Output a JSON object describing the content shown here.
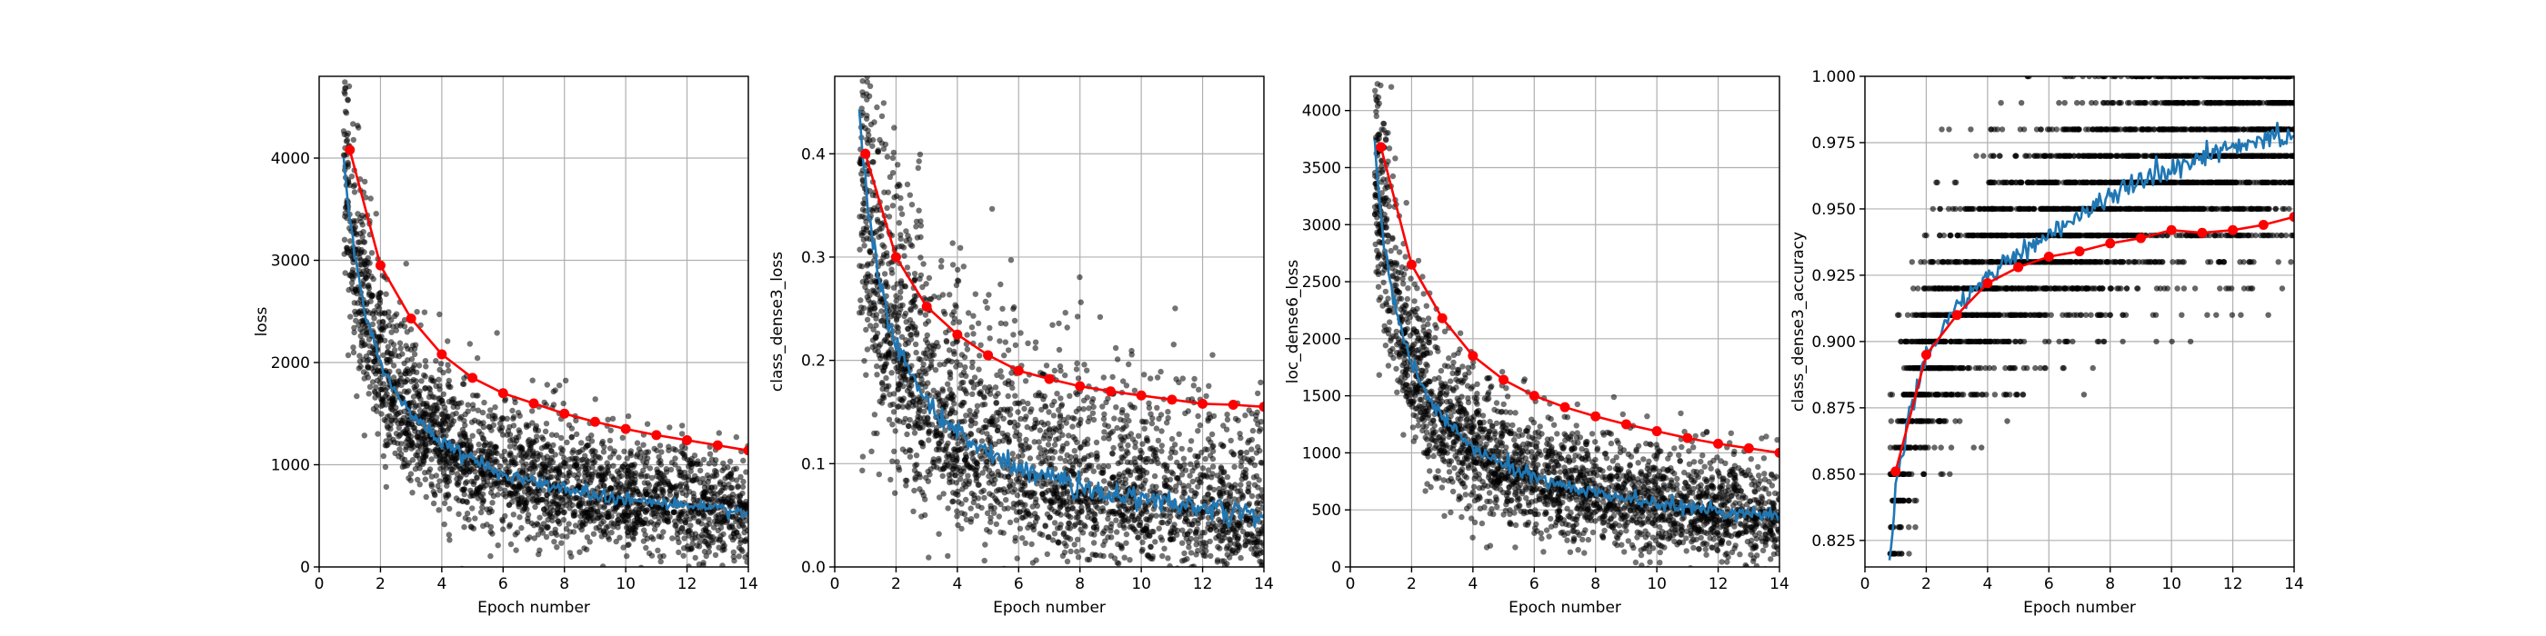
{
  "colors": {
    "scatter": "#000000",
    "train_curve": "#1f77b4",
    "val_curve": "#ff0000",
    "grid": "#b0b0b0"
  },
  "chart_data": [
    {
      "type": "line",
      "xlabel": "Epoch number",
      "ylabel": "loss",
      "xlim": [
        0,
        14
      ],
      "ylim": [
        0,
        4800
      ],
      "xticks": [
        0,
        2,
        4,
        6,
        8,
        10,
        12,
        14
      ],
      "yticks": [
        0,
        1000,
        2000,
        3000,
        4000
      ],
      "ytick_labels": [
        "0",
        "1000",
        "2000",
        "3000",
        "4000"
      ],
      "grid": true,
      "series": [
        {
          "kind": "batch_scatter",
          "model": {
            "a": 3260,
            "p": 0.8,
            "floor": 150,
            "spread_abs": 180,
            "spread_rel": 0.1,
            "skew": 0.15
          }
        },
        {
          "kind": "train_line",
          "x_start": 0.8,
          "model": {
            "a": 3260,
            "p": 0.8,
            "floor": 150,
            "noise": 35
          }
        },
        {
          "kind": "val_line",
          "x": [
            1,
            2,
            3,
            4,
            5,
            6,
            7,
            8,
            9,
            10,
            11,
            12,
            13,
            14
          ],
          "values": [
            4080,
            2950,
            2430,
            2080,
            1850,
            1700,
            1600,
            1500,
            1420,
            1350,
            1290,
            1240,
            1190,
            1140
          ]
        }
      ]
    },
    {
      "type": "line",
      "xlabel": "Epoch number",
      "ylabel": "class_dense3_loss",
      "xlim": [
        0,
        14
      ],
      "ylim": [
        0,
        0.475
      ],
      "xticks": [
        0,
        2,
        4,
        6,
        8,
        10,
        12,
        14
      ],
      "yticks": [
        0,
        0.1,
        0.2,
        0.3,
        0.4
      ],
      "ytick_labels": [
        "0.0",
        "0.1",
        "0.2",
        "0.3",
        "0.4"
      ],
      "grid": true,
      "series": [
        {
          "kind": "batch_scatter",
          "model": {
            "a": 0.37,
            "p": 0.75,
            "floor": 0.0,
            "spread_abs": 0.025,
            "spread_rel": 0.15,
            "skew": 0.35
          }
        },
        {
          "kind": "train_line",
          "x_start": 0.8,
          "model": {
            "a": 0.37,
            "p": 0.75,
            "floor": 0.0,
            "noise": 0.006
          }
        },
        {
          "kind": "val_line",
          "x": [
            1,
            2,
            3,
            4,
            5,
            6,
            7,
            8,
            9,
            10,
            11,
            12,
            13,
            14
          ],
          "values": [
            0.4,
            0.3,
            0.252,
            0.225,
            0.205,
            0.19,
            0.182,
            0.175,
            0.17,
            0.166,
            0.162,
            0.158,
            0.157,
            0.155
          ]
        }
      ]
    },
    {
      "type": "line",
      "xlabel": "Epoch number",
      "ylabel": "loc_dense6_loss",
      "xlim": [
        0,
        14
      ],
      "ylim": [
        0,
        4300
      ],
      "xticks": [
        0,
        2,
        4,
        6,
        8,
        10,
        12,
        14
      ],
      "yticks": [
        0,
        500,
        1000,
        1500,
        2000,
        2500,
        3000,
        3500,
        4000
      ],
      "ytick_labels": [
        "0",
        "500",
        "1000",
        "1500",
        "2000",
        "2500",
        "3000",
        "3500",
        "4000"
      ],
      "grid": true,
      "series": [
        {
          "kind": "batch_scatter",
          "model": {
            "a": 3000,
            "p": 0.82,
            "floor": 100,
            "spread_abs": 160,
            "spread_rel": 0.1,
            "skew": 0.15
          }
        },
        {
          "kind": "train_line",
          "x_start": 0.8,
          "model": {
            "a": 3000,
            "p": 0.82,
            "floor": 100,
            "noise": 30
          }
        },
        {
          "kind": "val_line",
          "x": [
            1,
            2,
            3,
            4,
            5,
            6,
            7,
            8,
            9,
            10,
            11,
            12,
            13,
            14
          ],
          "values": [
            3680,
            2650,
            2180,
            1850,
            1640,
            1500,
            1400,
            1320,
            1250,
            1190,
            1130,
            1080,
            1040,
            1000
          ]
        }
      ]
    },
    {
      "type": "line",
      "xlabel": "Epoch number",
      "ylabel": "class_dense3_accuracy",
      "xlim": [
        0,
        14
      ],
      "ylim": [
        0.815,
        1.0
      ],
      "xticks": [
        0,
        2,
        4,
        6,
        8,
        10,
        12,
        14
      ],
      "yticks": [
        0.825,
        0.85,
        0.875,
        0.9,
        0.925,
        0.95,
        0.975,
        1.0
      ],
      "ytick_labels": [
        "0.825",
        "0.850",
        "0.875",
        "0.900",
        "0.925",
        "0.950",
        "0.975",
        "1.000"
      ],
      "grid": true,
      "series": [
        {
          "kind": "batch_scatter_discrete",
          "step": 0.01,
          "model": {
            "spread": 0.022
          }
        },
        {
          "kind": "train_line",
          "x_start": 0.8,
          "anchors_x": [
            0.8,
            1,
            1.5,
            2,
            3,
            4,
            5,
            6,
            7,
            8,
            9,
            10,
            11,
            12,
            13,
            14
          ],
          "anchors_y": [
            0.818,
            0.845,
            0.875,
            0.895,
            0.913,
            0.925,
            0.933,
            0.941,
            0.948,
            0.955,
            0.961,
            0.966,
            0.97,
            0.973,
            0.976,
            0.978
          ],
          "noise": 0.002
        },
        {
          "kind": "val_line",
          "x": [
            1,
            2,
            3,
            4,
            5,
            6,
            7,
            8,
            9,
            10,
            11,
            12,
            13,
            14
          ],
          "values": [
            0.851,
            0.895,
            0.91,
            0.922,
            0.928,
            0.932,
            0.934,
            0.937,
            0.939,
            0.942,
            0.941,
            0.942,
            0.944,
            0.947
          ]
        }
      ]
    }
  ]
}
